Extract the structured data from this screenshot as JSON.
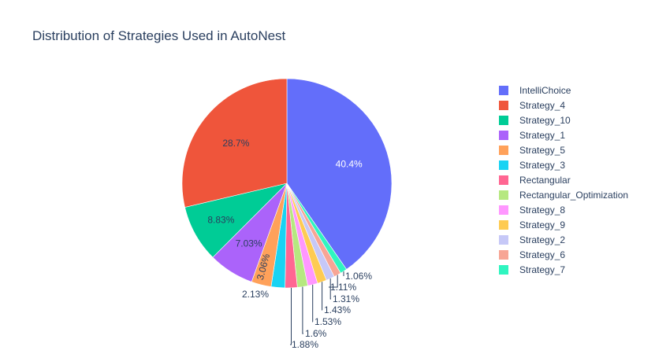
{
  "chart_data": {
    "type": "pie",
    "title": "Distribution of Strategies Used in AutoNest",
    "direction": "clockwise",
    "start_angle_deg": 90,
    "legend_position": "right",
    "slices": [
      {
        "label": "IntelliChoice",
        "value": 40.4,
        "display": "40.4%",
        "color": "#636efa",
        "text_color": "#ffffff"
      },
      {
        "label": "Strategy_7",
        "value": 1.06,
        "display": "1.06%",
        "color": "#2ff5c0",
        "text_color": "#2a3f5f"
      },
      {
        "label": "Strategy_6",
        "value": 1.11,
        "display": "1.11%",
        "color": "#f7a595",
        "text_color": "#2a3f5f"
      },
      {
        "label": "Strategy_2",
        "value": 1.31,
        "display": "1.31%",
        "color": "#c6c8f7",
        "text_color": "#2a3f5f"
      },
      {
        "label": "Strategy_9",
        "value": 1.43,
        "display": "1.43%",
        "color": "#fecb52",
        "text_color": "#2a3f5f"
      },
      {
        "label": "Strategy_8",
        "value": 1.53,
        "display": "1.53%",
        "color": "#ff97ff",
        "text_color": "#2a3f5f"
      },
      {
        "label": "Rectangular_Optimization",
        "value": 1.6,
        "display": "1.6%",
        "color": "#b6e880",
        "text_color": "#2a3f5f"
      },
      {
        "label": "Rectangular",
        "value": 1.88,
        "display": "1.88%",
        "color": "#ff6692",
        "text_color": "#2a3f5f"
      },
      {
        "label": "Strategy_3",
        "value": 2.13,
        "display": "2.13%",
        "color": "#19d3f3",
        "text_color": "#2a3f5f"
      },
      {
        "label": "Strategy_5",
        "value": 3.06,
        "display": "3.06%",
        "color": "#ffa15a",
        "text_color": "#2a3f5f"
      },
      {
        "label": "Strategy_1",
        "value": 7.03,
        "display": "7.03%",
        "color": "#ab63fa",
        "text_color": "#2a3f5f"
      },
      {
        "label": "Strategy_10",
        "value": 8.83,
        "display": "8.83%",
        "color": "#00cc96",
        "text_color": "#2a3f5f"
      },
      {
        "label": "Strategy_4",
        "value": 28.7,
        "display": "28.7%",
        "color": "#ef553b",
        "text_color": "#2a3f5f"
      }
    ],
    "legend": [
      {
        "label": "IntelliChoice",
        "color": "#636efa"
      },
      {
        "label": "Strategy_4",
        "color": "#ef553b"
      },
      {
        "label": "Strategy_10",
        "color": "#00cc96"
      },
      {
        "label": "Strategy_1",
        "color": "#ab63fa"
      },
      {
        "label": "Strategy_5",
        "color": "#ffa15a"
      },
      {
        "label": "Strategy_3",
        "color": "#19d3f3"
      },
      {
        "label": "Rectangular",
        "color": "#ff6692"
      },
      {
        "label": "Rectangular_Optimization",
        "color": "#b6e880"
      },
      {
        "label": "Strategy_8",
        "color": "#ff97ff"
      },
      {
        "label": "Strategy_9",
        "color": "#fecb52"
      },
      {
        "label": "Strategy_2",
        "color": "#c6c8f7"
      },
      {
        "label": "Strategy_6",
        "color": "#f7a595"
      },
      {
        "label": "Strategy_7",
        "color": "#2ff5c0"
      }
    ]
  }
}
